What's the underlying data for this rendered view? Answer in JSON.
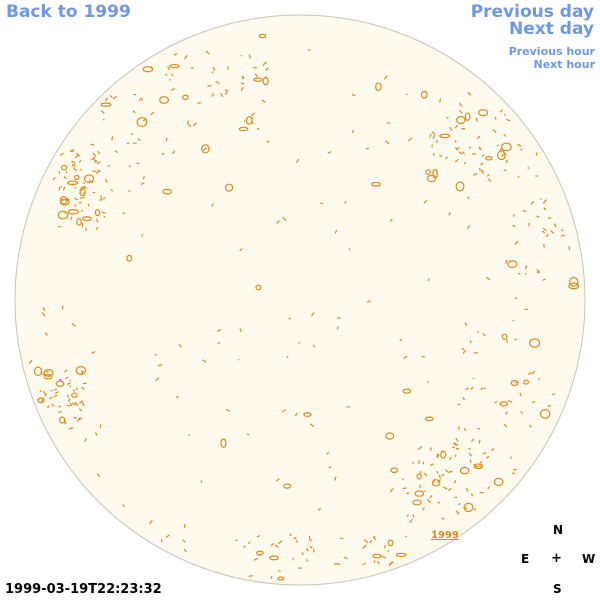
{
  "nav": {
    "back": "Back to 1999",
    "previous_day": "Previous day",
    "next_day": "Next day",
    "previous_hour": "Previous hour",
    "next_hour": "Next hour"
  },
  "timestamp": "1999-03-19T22:23:32",
  "disk_label": "1999",
  "compass": {
    "north": "N",
    "east": "E",
    "center": "+",
    "west": "W",
    "south": "S"
  },
  "colors": {
    "link": "#6f98e3",
    "disk_fill": "#fffaee",
    "disk_edge": "#c9c4bc",
    "contour": "#e08a1e"
  }
}
